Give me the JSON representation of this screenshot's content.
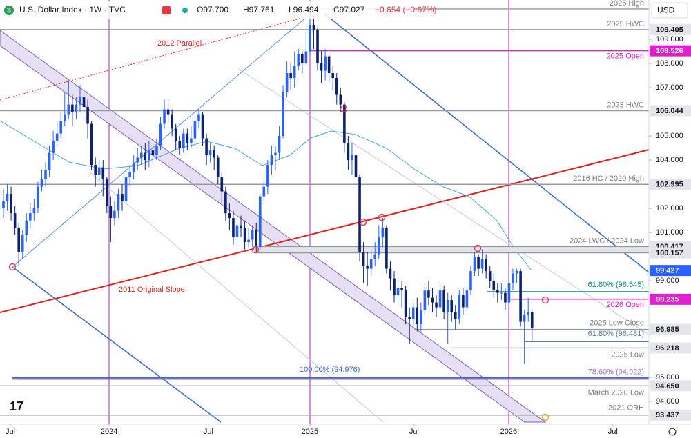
{
  "header": {
    "title": "U.S. Dollar Index · 1W · TVC",
    "ohlc": [
      "O97.700",
      "H97.761",
      "L96.494",
      "C97.027",
      "−0.654 (−0.67%)"
    ],
    "currency": "USD"
  },
  "chart_data": {
    "type": "candlestick",
    "up_color": "#2962ff",
    "down_color": "#0c2170",
    "xlim": [
      -0.9,
      168.5
    ],
    "ylim": [
      93.06,
      110.63
    ],
    "xticks": [
      {
        "value": 1.8,
        "label": "Jul"
      },
      {
        "value": 27.6,
        "label": "2024"
      },
      {
        "value": 53.5,
        "label": "Jul"
      },
      {
        "value": 80,
        "label": "2025"
      },
      {
        "value": 107.2,
        "label": "Jul"
      },
      {
        "value": 131.9,
        "label": "2026"
      },
      {
        "value": 159.1,
        "label": "Jul"
      }
    ],
    "yticks": [
      {
        "value": 94,
        "label": "94.000"
      },
      {
        "value": 95,
        "label": "95.000"
      },
      {
        "value": 99,
        "label": "99.000"
      },
      {
        "value": 101,
        "label": "101.000"
      },
      {
        "value": 102,
        "label": "102.000"
      },
      {
        "value": 104,
        "label": "104.000"
      },
      {
        "value": 105,
        "label": "105.000"
      },
      {
        "value": 107,
        "label": "107.000"
      },
      {
        "value": 108,
        "label": "108.000"
      },
      {
        "value": 109,
        "label": "109.000"
      }
    ],
    "annotations": [
      "2012 Parallel",
      "2011 Original Slope"
    ],
    "moving_average": {
      "value": 99.427,
      "color": "#2962ff"
    },
    "levels": [
      {
        "name": "2025 High",
        "value": 110.26,
        "color": "#9598a1",
        "show_axis_label": false
      },
      {
        "name": "2025 HWC",
        "value": 109.405,
        "color": "#9598a1",
        "show_axis_label": true
      },
      {
        "name": "2025 Open",
        "value": 108.526,
        "color": "#e020d0",
        "show_axis_label": true
      },
      {
        "name": "2023 HWC",
        "value": 106.044,
        "color": "#9598a1",
        "show_axis_label": true
      },
      {
        "name": "2016 HC / 2020 High",
        "value": 102.995,
        "color": "#9598a1",
        "show_axis_label": true
      },
      {
        "name": "2024 LWC / 2024 Low",
        "value": 100.417,
        "color": "#9598a1",
        "show_axis_label": true
      },
      {
        "value": 100.157,
        "color": "#9598a1",
        "show_axis_label": true
      },
      {
        "name": "61.80% (98.545)",
        "value": 98.545,
        "color": "#138a8a",
        "show_axis_label": false
      },
      {
        "name": "2026 Open",
        "value": 98.235,
        "color": "#e020d0",
        "show_axis_label": true
      },
      {
        "name": "2025 Low Close",
        "value": 96.985,
        "color": "#9598a1",
        "show_axis_label": true
      },
      {
        "name": "61.80% (96.481)",
        "value": 96.481,
        "color": "#5d7ea8",
        "show_axis_label": false
      },
      {
        "name": "2025 Low",
        "value": 96.218,
        "color": "#9598a1",
        "show_axis_label": true
      },
      {
        "name": "100.00% (94.976)",
        "value": 94.976,
        "color": "#3d6dc9",
        "show_axis_label": false
      },
      {
        "name": "78.60% (94.922)",
        "value": 94.922,
        "color": "#a070d0",
        "show_axis_label": false
      },
      {
        "name": "March 2020 Low",
        "value": 94.65,
        "axis_label": "94.650",
        "color": "#9598a1",
        "show_axis_label": true
      },
      {
        "name": "2021 ORH",
        "value": 93.437,
        "color": "#9598a1",
        "show_axis_label": true
      }
    ],
    "candles": [
      [
        102.0,
        102.8,
        101.6,
        102.3
      ],
      [
        102.3,
        103.0,
        101.9,
        102.6
      ],
      [
        102.6,
        102.9,
        101.5,
        101.8
      ],
      [
        101.8,
        102.1,
        100.9,
        101.2
      ],
      [
        101.2,
        101.4,
        99.6,
        100.2
      ],
      [
        100.2,
        101.1,
        99.9,
        100.9
      ],
      [
        100.9,
        101.8,
        100.6,
        101.5
      ],
      [
        101.5,
        102.2,
        101.2,
        101.8
      ],
      [
        101.8,
        102.4,
        101.5,
        102.0
      ],
      [
        102.0,
        103.1,
        101.8,
        102.9
      ],
      [
        102.9,
        103.6,
        102.7,
        103.2
      ],
      [
        103.2,
        103.9,
        102.9,
        103.6
      ],
      [
        103.6,
        104.6,
        103.3,
        104.3
      ],
      [
        104.3,
        105.2,
        104.0,
        104.8
      ],
      [
        104.8,
        105.6,
        104.6,
        105.1
      ],
      [
        105.1,
        106.0,
        104.9,
        105.6
      ],
      [
        105.6,
        106.8,
        105.4,
        105.9
      ],
      [
        105.9,
        107.3,
        105.7,
        106.3
      ],
      [
        106.3,
        106.7,
        105.4,
        106.0
      ],
      [
        106.0,
        106.6,
        105.7,
        106.3
      ],
      [
        106.3,
        107.1,
        106.0,
        106.6
      ],
      [
        106.6,
        106.9,
        105.8,
        106.2
      ],
      [
        106.2,
        106.5,
        104.9,
        105.5
      ],
      [
        105.5,
        105.6,
        103.6,
        103.8
      ],
      [
        103.8,
        104.1,
        102.9,
        103.4
      ],
      [
        103.4,
        104.0,
        103.1,
        103.7
      ],
      [
        103.7,
        104.0,
        102.5,
        103.2
      ],
      [
        103.2,
        103.3,
        101.8,
        102.1
      ],
      [
        102.1,
        102.5,
        100.6,
        101.6
      ],
      [
        101.6,
        102.3,
        101.3,
        101.9
      ],
      [
        101.9,
        102.8,
        101.6,
        102.6
      ],
      [
        102.6,
        103.0,
        101.9,
        102.3
      ],
      [
        102.3,
        103.5,
        102.1,
        103.3
      ],
      [
        103.3,
        103.8,
        102.9,
        103.5
      ],
      [
        103.5,
        104.2,
        103.2,
        103.9
      ],
      [
        103.9,
        104.5,
        103.6,
        104.1
      ],
      [
        104.1,
        104.6,
        103.8,
        104.3
      ],
      [
        104.3,
        104.7,
        103.6,
        104.0
      ],
      [
        104.0,
        104.8,
        103.7,
        104.4
      ],
      [
        104.4,
        104.6,
        103.9,
        104.2
      ],
      [
        104.2,
        104.9,
        104.0,
        104.6
      ],
      [
        104.6,
        105.8,
        104.4,
        105.5
      ],
      [
        105.5,
        106.5,
        105.3,
        106.1
      ],
      [
        106.1,
        106.5,
        105.5,
        105.9
      ],
      [
        105.9,
        106.1,
        105.0,
        105.3
      ],
      [
        105.3,
        105.5,
        104.4,
        104.8
      ],
      [
        104.8,
        105.0,
        104.2,
        104.5
      ],
      [
        104.5,
        105.3,
        104.3,
        105.1
      ],
      [
        105.1,
        105.3,
        104.4,
        104.7
      ],
      [
        104.7,
        105.4,
        104.5,
        104.9
      ],
      [
        104.9,
        105.9,
        104.6,
        105.6
      ],
      [
        105.6,
        106.1,
        105.3,
        105.9
      ],
      [
        105.9,
        106.0,
        104.6,
        104.9
      ],
      [
        104.9,
        105.1,
        103.8,
        104.2
      ],
      [
        104.2,
        104.7,
        103.9,
        104.4
      ],
      [
        104.4,
        104.6,
        103.6,
        104.1
      ],
      [
        104.1,
        104.2,
        103.0,
        103.3
      ],
      [
        103.3,
        103.5,
        102.2,
        102.7
      ],
      [
        102.7,
        102.9,
        101.5,
        101.8
      ],
      [
        101.8,
        102.2,
        101.1,
        101.6
      ],
      [
        101.6,
        101.9,
        100.5,
        100.8
      ],
      [
        100.8,
        101.6,
        100.5,
        101.3
      ],
      [
        101.3,
        101.7,
        100.8,
        101.2
      ],
      [
        101.2,
        101.5,
        100.3,
        100.6
      ],
      [
        100.6,
        101.2,
        100.4,
        100.7
      ],
      [
        100.7,
        101.3,
        100.4,
        101.1
      ],
      [
        101.1,
        101.4,
        100.16,
        100.4
      ],
      [
        100.4,
        102.6,
        100.3,
        102.5
      ],
      [
        102.5,
        103.2,
        102.3,
        102.9
      ],
      [
        102.9,
        104.0,
        102.6,
        103.8
      ],
      [
        103.8,
        104.6,
        103.4,
        104.2
      ],
      [
        104.2,
        104.6,
        103.6,
        104.3
      ],
      [
        104.3,
        105.4,
        104.0,
        105.0
      ],
      [
        105.0,
        107.1,
        104.9,
        106.8
      ],
      [
        106.8,
        108.1,
        106.6,
        107.6
      ],
      [
        107.6,
        108.0,
        106.9,
        107.4
      ],
      [
        107.4,
        108.5,
        107.0,
        107.9
      ],
      [
        107.9,
        108.6,
        107.7,
        108.4
      ],
      [
        108.4,
        108.5,
        107.6,
        108.0
      ],
      [
        108.0,
        109.3,
        107.9,
        108.5
      ],
      [
        108.5,
        110.2,
        108.4,
        109.6
      ],
      [
        109.6,
        110.0,
        108.6,
        109.4
      ],
      [
        109.4,
        109.5,
        107.7,
        108.0
      ],
      [
        108.0,
        108.5,
        107.2,
        107.7
      ],
      [
        107.7,
        108.6,
        107.3,
        108.3
      ],
      [
        108.3,
        108.4,
        107.2,
        107.6
      ],
      [
        107.6,
        107.9,
        106.9,
        107.4
      ],
      [
        107.4,
        107.6,
        106.3,
        106.7
      ],
      [
        106.7,
        107.0,
        106.0,
        106.3
      ],
      [
        106.3,
        106.4,
        104.3,
        104.7
      ],
      [
        104.7,
        105.0,
        103.6,
        104.0
      ],
      [
        104.0,
        104.7,
        103.4,
        104.2
      ],
      [
        104.2,
        104.5,
        103.0,
        103.3
      ],
      [
        103.3,
        103.4,
        99.8,
        100.2
      ],
      [
        100.2,
        100.6,
        98.9,
        99.6
      ],
      [
        99.6,
        100.2,
        98.8,
        99.5
      ],
      [
        99.5,
        100.3,
        99.2,
        99.9
      ],
      [
        99.9,
        100.6,
        99.6,
        100.1
      ],
      [
        100.1,
        101.3,
        99.9,
        100.8
      ],
      [
        100.8,
        101.6,
        100.4,
        101.2
      ],
      [
        101.2,
        101.3,
        99.3,
        99.5
      ],
      [
        99.5,
        99.8,
        98.6,
        99.1
      ],
      [
        99.1,
        99.4,
        98.1,
        98.4
      ],
      [
        98.4,
        99.1,
        98.0,
        98.7
      ],
      [
        98.7,
        99.0,
        97.9,
        98.6
      ],
      [
        98.6,
        98.8,
        97.2,
        97.5
      ],
      [
        97.5,
        97.9,
        96.4,
        97.4
      ],
      [
        97.4,
        98.1,
        97.1,
        97.9
      ],
      [
        97.9,
        98.3,
        96.9,
        97.2
      ],
      [
        97.2,
        98.1,
        96.9,
        97.8
      ],
      [
        97.8,
        98.9,
        97.6,
        98.6
      ],
      [
        98.6,
        99.0,
        98.0,
        98.3
      ],
      [
        98.3,
        98.7,
        97.7,
        98.1
      ],
      [
        98.1,
        98.4,
        97.5,
        97.9
      ],
      [
        97.9,
        98.9,
        97.6,
        98.6
      ],
      [
        98.6,
        98.8,
        97.4,
        97.7
      ],
      [
        97.7,
        98.5,
        96.4,
        98.2
      ],
      [
        98.2,
        98.4,
        97.3,
        97.7
      ],
      [
        97.7,
        98.0,
        97.0,
        97.4
      ],
      [
        97.4,
        98.6,
        97.2,
        98.4
      ],
      [
        98.4,
        98.7,
        97.6,
        97.9
      ],
      [
        97.9,
        98.8,
        97.7,
        98.6
      ],
      [
        98.6,
        99.6,
        98.4,
        99.4
      ],
      [
        99.4,
        100.2,
        99.2,
        100.0
      ],
      [
        100.0,
        100.1,
        99.2,
        99.5
      ],
      [
        99.5,
        100.3,
        99.3,
        99.9
      ],
      [
        99.9,
        100.1,
        99.1,
        99.4
      ],
      [
        99.4,
        99.6,
        98.7,
        99.0
      ],
      [
        99.0,
        99.3,
        98.3,
        98.6
      ],
      [
        98.6,
        98.9,
        98.1,
        98.5
      ],
      [
        98.5,
        98.9,
        98.2,
        98.5
      ],
      [
        98.5,
        98.7,
        97.8,
        98.1
      ],
      [
        98.1,
        99.2,
        97.9,
        98.9
      ],
      [
        98.9,
        99.5,
        98.6,
        99.3
      ],
      [
        99.3,
        99.5,
        98.9,
        99.4
      ],
      [
        99.4,
        99.5,
        97.1,
        97.3
      ],
      [
        97.3,
        97.8,
        95.55,
        97.6
      ],
      [
        97.6,
        98.3,
        97.3,
        97.7
      ],
      [
        97.7,
        97.761,
        96.494,
        97.027
      ]
    ]
  }
}
